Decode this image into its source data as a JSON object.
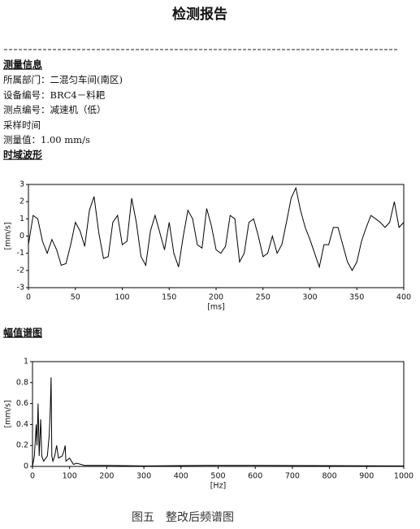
{
  "header": {
    "title": "检测报告"
  },
  "info": {
    "heading": "测量信息",
    "lines": [
      "所属部门：二混匀车间(南区)",
      "设备编号：BRC4－料耙",
      "测点编号：减速机（低）",
      "采样时间",
      "测量值：1.00 mm/s"
    ]
  },
  "chart_data": [
    {
      "type": "line",
      "title": "时域波形",
      "x_label": "[ms]",
      "y_label": "[mm/s]",
      "color": "#000000",
      "x": [
        0,
        5,
        10,
        15,
        20,
        25,
        30,
        35,
        40,
        45,
        50,
        55,
        60,
        65,
        70,
        75,
        80,
        85,
        90,
        95,
        100,
        105,
        110,
        115,
        120,
        125,
        130,
        135,
        140,
        145,
        150,
        155,
        160,
        165,
        170,
        175,
        180,
        185,
        190,
        195,
        200,
        205,
        210,
        215,
        220,
        225,
        230,
        235,
        240,
        245,
        250,
        255,
        260,
        265,
        270,
        275,
        280,
        285,
        290,
        295,
        300,
        305,
        310,
        315,
        320,
        325,
        330,
        335,
        340,
        345,
        350,
        355,
        360,
        365,
        370,
        375,
        380,
        385,
        390,
        395,
        400
      ],
      "values": [
        -0.5,
        1.2,
        1.0,
        -0.3,
        -1.0,
        -0.2,
        -0.8,
        -1.7,
        -1.6,
        -0.5,
        0.8,
        0.3,
        -0.6,
        1.5,
        2.3,
        0.2,
        -1.3,
        -1.2,
        0.8,
        1.2,
        -0.5,
        -0.3,
        2.2,
        0.8,
        -1.2,
        -1.7,
        0.3,
        1.2,
        0.2,
        -0.8,
        0.8,
        -1.0,
        -1.8,
        0.0,
        1.5,
        1.0,
        -0.5,
        -0.7,
        1.6,
        0.6,
        -0.8,
        -1.0,
        -0.6,
        1.2,
        1.0,
        -1.5,
        -1.0,
        0.8,
        1.0,
        0.0,
        -1.2,
        -1.0,
        0.0,
        -1.0,
        -0.5,
        0.8,
        2.2,
        2.8,
        1.5,
        0.5,
        -0.2,
        -1.0,
        -1.8,
        -0.5,
        -0.5,
        0.5,
        0.5,
        -0.5,
        -1.5,
        -2.0,
        -1.5,
        -0.3,
        0.5,
        1.2,
        1.0,
        0.8,
        0.5,
        0.8,
        2.0,
        0.5,
        0.8
      ],
      "xlim": [
        0,
        400
      ],
      "xticks": [
        0,
        50,
        100,
        150,
        200,
        250,
        300,
        350,
        400
      ],
      "ylim": [
        -3,
        3
      ],
      "yticks": [
        -3,
        -2,
        -1,
        0,
        1,
        2,
        3
      ]
    },
    {
      "type": "line",
      "title": "幅值谱图",
      "x_label": "[Hz]",
      "y_label": "[mm/s]",
      "color": "#000000",
      "x": [
        0,
        5,
        10,
        12,
        15,
        18,
        22,
        25,
        30,
        40,
        45,
        48,
        50,
        52,
        55,
        60,
        65,
        70,
        80,
        85,
        88,
        90,
        100,
        110,
        120,
        140,
        200,
        300,
        500,
        600,
        1000
      ],
      "values": [
        0,
        0.1,
        0.4,
        0.2,
        0.6,
        0.1,
        0.45,
        0.1,
        0.05,
        0.1,
        0.3,
        0.55,
        0.85,
        0.1,
        0.05,
        0.1,
        0.2,
        0.08,
        0.1,
        0.15,
        0.2,
        0.05,
        0.08,
        0.02,
        0.03,
        0.01,
        0.01,
        0.005,
        0.01,
        0.01,
        0.005
      ],
      "xlim": [
        0,
        1000
      ],
      "xticks": [
        0,
        100,
        200,
        300,
        400,
        500,
        600,
        700,
        800,
        900,
        1000
      ],
      "ylim": [
        0,
        1
      ],
      "yticks": [
        0,
        0.2,
        0.4,
        0.6,
        0.8,
        1
      ]
    }
  ],
  "caption": "图五　整改后频谱图"
}
